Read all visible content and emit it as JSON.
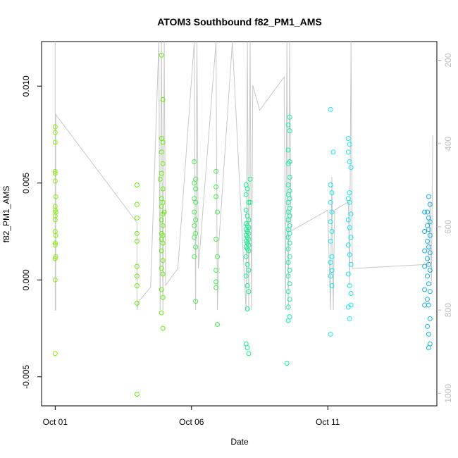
{
  "chart_data": {
    "type": "scatter",
    "title": "ATOM3 Southbound f82_PM1_AMS",
    "xlabel": "Date",
    "ylabel": "f82_PM1_AMS",
    "x_tick_labels": [
      {
        "day": 1,
        "label": "Oct 01"
      },
      {
        "day": 6,
        "label": "Oct 06"
      },
      {
        "day": 11,
        "label": "Oct 11"
      }
    ],
    "y_ticks": [
      -0.005,
      0.0,
      0.005,
      0.01
    ],
    "y_tick_labels": [
      "-0.005",
      "0.000",
      "0.005",
      "0.010"
    ],
    "ylim": [
      -0.0065,
      0.0123
    ],
    "xlim_days": [
      0.5,
      15.0
    ],
    "right_axis": {
      "quantity": "pressure",
      "ticks": [
        200,
        400,
        600,
        800,
        1000
      ],
      "tick_labels": [
        "200",
        "400",
        "600",
        "800",
        "1000"
      ],
      "ylim": [
        1030,
        155
      ],
      "color": "#bdbdbd"
    },
    "point_color_scale": "time (green to cyan to blue)",
    "point_marker": "open circle",
    "grid": false,
    "series": [
      {
        "color": "#84ee00",
        "points": [
          [
            1.0,
            0.0079
          ],
          [
            1.0,
            0.0076
          ],
          [
            1.0,
            0.0071
          ],
          [
            1.0,
            0.0056
          ],
          [
            1.0,
            0.0055
          ],
          [
            1.0,
            0.0051
          ],
          [
            1.02,
            0.0043
          ],
          [
            1.0,
            0.0038
          ],
          [
            1.0,
            0.0036
          ],
          [
            1.02,
            0.0035
          ],
          [
            1.0,
            0.0033
          ],
          [
            1.0,
            0.0031
          ],
          [
            1.0,
            0.0025
          ],
          [
            1.02,
            0.0023
          ],
          [
            1.0,
            0.0019
          ],
          [
            1.0,
            0.0018
          ],
          [
            1.02,
            0.0012
          ],
          [
            1.0,
            0.0011
          ],
          [
            1.0,
            0.0
          ],
          [
            1.0,
            -0.0038
          ]
        ]
      },
      {
        "color": "#5fef00",
        "points": [
          [
            4.0,
            0.0049
          ],
          [
            4.0,
            0.0039
          ],
          [
            4.0,
            0.0032
          ],
          [
            4.0,
            0.0024
          ],
          [
            4.0,
            0.002
          ],
          [
            4.0,
            0.0007
          ],
          [
            4.0,
            0.0002
          ],
          [
            4.0,
            -0.0003
          ],
          [
            4.0,
            -0.0012
          ],
          [
            4.0,
            -0.0059
          ],
          [
            4.9,
            0.0116
          ],
          [
            4.95,
            0.0093
          ],
          [
            4.9,
            0.0073
          ],
          [
            4.95,
            0.0071
          ],
          [
            4.9,
            0.0066
          ],
          [
            4.95,
            0.006
          ],
          [
            4.9,
            0.0055
          ],
          [
            4.95,
            0.0047
          ],
          [
            4.9,
            0.0042
          ],
          [
            4.95,
            0.004
          ],
          [
            4.9,
            0.0038
          ],
          [
            4.95,
            0.0034
          ],
          [
            4.9,
            0.0031
          ],
          [
            4.95,
            0.0028
          ],
          [
            4.9,
            0.0024
          ],
          [
            4.95,
            0.0023
          ],
          [
            4.9,
            0.0021
          ],
          [
            4.95,
            0.0019
          ],
          [
            4.9,
            0.0015
          ],
          [
            4.95,
            0.001
          ],
          [
            4.9,
            0.0006
          ],
          [
            4.95,
            0.0003
          ],
          [
            4.9,
            -0.0005
          ],
          [
            4.95,
            -0.0009
          ],
          [
            4.9,
            -0.0017
          ],
          [
            4.95,
            -0.0025
          ],
          [
            4.85,
            0.0052
          ],
          [
            5.0,
            0.0035
          ]
        ]
      },
      {
        "color": "#3ff04a",
        "points": [
          [
            6.1,
            0.0061
          ],
          [
            6.15,
            0.0052
          ],
          [
            6.1,
            0.005
          ],
          [
            6.15,
            0.0047
          ],
          [
            6.1,
            0.0042
          ],
          [
            6.15,
            0.004
          ],
          [
            6.1,
            0.0035
          ],
          [
            6.15,
            0.0031
          ],
          [
            6.1,
            0.0028
          ],
          [
            6.15,
            0.0024
          ],
          [
            6.1,
            0.0022
          ],
          [
            6.15,
            0.0017
          ],
          [
            6.1,
            0.0012
          ],
          [
            6.15,
            -0.0011
          ],
          [
            6.9,
            0.0056
          ],
          [
            6.9,
            0.0048
          ],
          [
            6.9,
            0.0043
          ],
          [
            6.95,
            0.0035
          ],
          [
            6.9,
            0.0021
          ],
          [
            6.95,
            0.0012
          ],
          [
            6.9,
            0.0005
          ],
          [
            6.9,
            -0.0001
          ],
          [
            6.9,
            -0.0004
          ],
          [
            6.95,
            -0.0023
          ]
        ]
      },
      {
        "color": "#10f08c",
        "points": [
          [
            8.0,
            0.0049
          ],
          [
            8.05,
            0.0047
          ],
          [
            8.0,
            0.0044
          ],
          [
            8.1,
            0.004
          ],
          [
            8.0,
            0.0036
          ],
          [
            8.05,
            0.0033
          ],
          [
            8.1,
            0.0031
          ],
          [
            8.0,
            0.0029
          ],
          [
            8.05,
            0.0028
          ],
          [
            8.1,
            0.0027
          ],
          [
            8.0,
            0.0026
          ],
          [
            8.05,
            0.0025
          ],
          [
            8.1,
            0.0024
          ],
          [
            8.0,
            0.0023
          ],
          [
            8.05,
            0.0022
          ],
          [
            8.1,
            0.0021
          ],
          [
            8.0,
            0.002
          ],
          [
            8.05,
            0.0019
          ],
          [
            8.1,
            0.0018
          ],
          [
            8.0,
            0.0017
          ],
          [
            8.05,
            0.0016
          ],
          [
            8.1,
            0.0015
          ],
          [
            8.0,
            0.0012
          ],
          [
            8.05,
            0.0008
          ],
          [
            8.1,
            0.0005
          ],
          [
            8.0,
            0.0002
          ],
          [
            8.05,
            -0.0003
          ],
          [
            8.1,
            -0.0006
          ],
          [
            8.05,
            -0.0015
          ],
          [
            8.0,
            -0.0033
          ],
          [
            8.05,
            -0.0035
          ],
          [
            8.1,
            -0.0038
          ],
          [
            8.15,
            0.0052
          ],
          [
            8.15,
            0.004
          ]
        ]
      },
      {
        "color": "#10f0b0",
        "points": [
          [
            9.6,
            0.0084
          ],
          [
            9.55,
            0.008
          ],
          [
            9.6,
            0.0077
          ],
          [
            9.55,
            0.0067
          ],
          [
            9.6,
            0.0061
          ],
          [
            9.55,
            0.006
          ],
          [
            9.6,
            0.0053
          ],
          [
            9.55,
            0.0049
          ],
          [
            9.6,
            0.0046
          ],
          [
            9.55,
            0.0044
          ],
          [
            9.6,
            0.0042
          ],
          [
            9.55,
            0.004
          ],
          [
            9.6,
            0.0037
          ],
          [
            9.55,
            0.0035
          ],
          [
            9.6,
            0.0033
          ],
          [
            9.55,
            0.0031
          ],
          [
            9.6,
            0.0028
          ],
          [
            9.55,
            0.0026
          ],
          [
            9.6,
            0.0024
          ],
          [
            9.55,
            0.0022
          ],
          [
            9.6,
            0.0019
          ],
          [
            9.55,
            0.0016
          ],
          [
            9.6,
            0.0012
          ],
          [
            9.55,
            0.0009
          ],
          [
            9.6,
            0.0005
          ],
          [
            9.55,
            0.0002
          ],
          [
            9.6,
            -0.0002
          ],
          [
            9.55,
            -0.0006
          ],
          [
            9.6,
            -0.001
          ],
          [
            9.55,
            -0.0014
          ],
          [
            9.6,
            -0.0019
          ],
          [
            9.55,
            -0.0021
          ],
          [
            9.5,
            -0.0043
          ]
        ]
      },
      {
        "color": "#10e8f0",
        "points": [
          [
            11.1,
            0.0088
          ],
          [
            11.2,
            0.0066
          ],
          [
            11.1,
            0.0049
          ],
          [
            11.15,
            0.0045
          ],
          [
            11.1,
            0.004
          ],
          [
            11.15,
            0.0035
          ],
          [
            11.1,
            0.003
          ],
          [
            11.15,
            0.0025
          ],
          [
            11.1,
            0.002
          ],
          [
            11.15,
            0.0012
          ],
          [
            11.1,
            0.0009
          ],
          [
            11.15,
            0.0005
          ],
          [
            11.1,
            0.0002
          ],
          [
            11.15,
            -0.0003
          ],
          [
            11.1,
            -0.0028
          ],
          [
            11.75,
            0.0073
          ],
          [
            11.8,
            0.007
          ],
          [
            11.75,
            0.0066
          ],
          [
            11.8,
            0.0061
          ],
          [
            11.85,
            0.0058
          ],
          [
            11.8,
            0.0045
          ],
          [
            11.75,
            0.0042
          ],
          [
            11.8,
            0.004
          ],
          [
            11.85,
            0.0034
          ],
          [
            11.75,
            0.0031
          ],
          [
            11.8,
            0.0027
          ],
          [
            11.85,
            0.0022
          ],
          [
            11.75,
            0.0018
          ],
          [
            11.8,
            0.0013
          ],
          [
            11.85,
            0.0008
          ],
          [
            11.75,
            0.0003
          ],
          [
            11.8,
            -0.0003
          ],
          [
            11.85,
            -0.0007
          ],
          [
            11.75,
            -0.0014
          ],
          [
            11.85,
            -0.0013
          ],
          [
            11.8,
            -0.002
          ]
        ]
      },
      {
        "color": "#10b0e8",
        "points": [
          [
            14.7,
            0.0043
          ],
          [
            14.75,
            0.0039
          ],
          [
            14.65,
            0.0035
          ],
          [
            14.7,
            0.0032
          ],
          [
            14.75,
            0.003
          ],
          [
            14.65,
            0.0028
          ],
          [
            14.7,
            0.0026
          ],
          [
            14.75,
            0.0023
          ],
          [
            14.65,
            0.002
          ],
          [
            14.7,
            0.0017
          ],
          [
            14.75,
            0.0014
          ],
          [
            14.65,
            0.0011
          ],
          [
            14.7,
            0.0008
          ],
          [
            14.75,
            0.0005
          ],
          [
            14.65,
            0.0002
          ],
          [
            14.7,
            -0.0002
          ],
          [
            14.75,
            -0.0006
          ],
          [
            14.65,
            -0.001
          ],
          [
            14.7,
            -0.0013
          ],
          [
            14.75,
            -0.002
          ],
          [
            14.65,
            -0.0024
          ],
          [
            14.7,
            -0.0028
          ],
          [
            14.75,
            -0.0033
          ],
          [
            14.7,
            -0.0035
          ],
          [
            14.55,
            0.0035
          ],
          [
            14.55,
            0.0025
          ],
          [
            14.55,
            0.0015
          ],
          [
            14.55,
            0.0007
          ],
          [
            14.55,
            -0.0005
          ],
          [
            14.55,
            -0.0013
          ]
        ]
      }
    ],
    "pressure_trace": {
      "color": "#c8c8c8",
      "points": [
        [
          1.0,
          150
        ],
        [
          1.0,
          800
        ],
        [
          1.02,
          800
        ],
        [
          1.02,
          330
        ],
        [
          4.0,
          590
        ],
        [
          4.0,
          800
        ],
        [
          4.05,
          780
        ],
        [
          4.5,
          745
        ],
        [
          4.8,
          150
        ],
        [
          4.85,
          800
        ],
        [
          4.9,
          150
        ],
        [
          4.95,
          800
        ],
        [
          5.0,
          150
        ],
        [
          5.05,
          740
        ],
        [
          5.5,
          700
        ],
        [
          6.1,
          150
        ],
        [
          6.15,
          800
        ],
        [
          6.2,
          150
        ],
        [
          6.25,
          700
        ],
        [
          6.9,
          150
        ],
        [
          6.95,
          800
        ],
        [
          7.0,
          640
        ],
        [
          7.5,
          100
        ],
        [
          8.0,
          800
        ],
        [
          8.05,
          150
        ],
        [
          8.1,
          800
        ],
        [
          8.15,
          150
        ],
        [
          8.2,
          800
        ],
        [
          8.25,
          260
        ],
        [
          8.5,
          320
        ],
        [
          9.4,
          240
        ],
        [
          9.45,
          800
        ],
        [
          9.5,
          150
        ],
        [
          9.55,
          800
        ],
        [
          9.6,
          150
        ],
        [
          9.65,
          610
        ],
        [
          11.0,
          560
        ],
        [
          11.1,
          800
        ],
        [
          11.15,
          480
        ],
        [
          11.2,
          800
        ],
        [
          11.25,
          560
        ],
        [
          11.75,
          540
        ],
        [
          11.8,
          740
        ],
        [
          11.85,
          150
        ],
        [
          11.9,
          700
        ],
        [
          14.7,
          690
        ],
        [
          14.75,
          540
        ],
        [
          14.8,
          740
        ],
        [
          14.85,
          380
        ]
      ]
    }
  }
}
